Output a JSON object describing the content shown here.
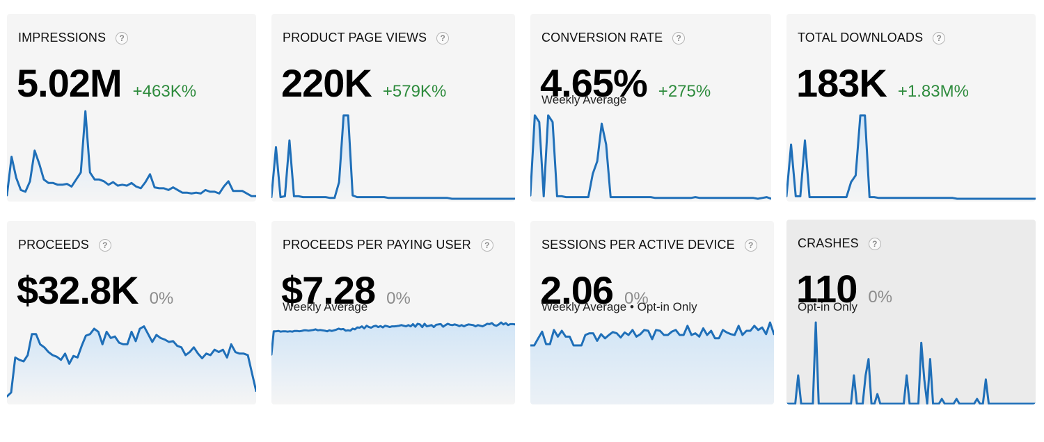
{
  "colors": {
    "line": "#1f6fb8",
    "fill": "#cfe4f7",
    "up": "#2e8b3d",
    "flat": "#8c8c8c"
  },
  "help_icon": "?",
  "cards": [
    {
      "title": "IMPRESSIONS",
      "value": "5.02M",
      "delta": "+463K%",
      "trend": "up",
      "subtitle": "",
      "chart_data": {
        "type": "area",
        "ylim": [
          0,
          100
        ],
        "values": [
          4,
          48,
          24,
          10,
          8,
          20,
          55,
          40,
          22,
          18,
          18,
          16,
          16,
          17,
          14,
          22,
          30,
          100,
          30,
          22,
          22,
          20,
          16,
          19,
          15,
          16,
          15,
          18,
          14,
          12,
          19,
          28,
          13,
          12,
          12,
          10,
          13,
          10,
          7,
          7,
          6,
          7,
          6,
          10,
          8,
          8,
          6,
          14,
          20,
          9,
          9,
          9,
          6,
          3,
          3
        ]
      }
    },
    {
      "title": "PRODUCT PAGE VIEWS",
      "value": "220K",
      "delta": "+579K%",
      "trend": "up",
      "subtitle": "",
      "chart_data": {
        "type": "area",
        "ylim": [
          0,
          100
        ],
        "values": [
          2,
          62,
          2,
          3,
          70,
          3,
          3,
          2,
          2,
          2,
          2,
          2,
          2,
          1,
          1,
          20,
          100,
          100,
          4,
          2,
          2,
          2,
          2,
          2,
          2,
          2,
          1,
          1,
          1,
          1,
          1,
          1,
          1,
          1,
          1,
          1,
          1,
          1,
          1,
          1,
          0,
          0,
          0,
          0,
          0,
          0,
          0,
          0,
          0,
          0,
          0,
          0,
          0,
          0,
          0
        ]
      }
    },
    {
      "title": "CONVERSION RATE",
      "value": "4.65%",
      "delta": "+275%",
      "trend": "up",
      "subtitle": "Weekly Average",
      "chart_data": {
        "type": "area",
        "ylim": [
          0,
          100
        ],
        "values": [
          4,
          100,
          92,
          3,
          100,
          92,
          3,
          3,
          2,
          2,
          2,
          2,
          2,
          2,
          30,
          45,
          90,
          65,
          2,
          2,
          2,
          2,
          2,
          2,
          2,
          2,
          2,
          2,
          1,
          1,
          1,
          1,
          1,
          1,
          1,
          1,
          1,
          2,
          1,
          1,
          1,
          1,
          1,
          1,
          1,
          1,
          1,
          1,
          1,
          1,
          1,
          0,
          1,
          2,
          0
        ]
      }
    },
    {
      "title": "TOTAL DOWNLOADS",
      "value": "183K",
      "delta": "+1.83M%",
      "trend": "up",
      "subtitle": "",
      "chart_data": {
        "type": "area",
        "ylim": [
          0,
          100
        ],
        "values": [
          3,
          65,
          3,
          3,
          70,
          2,
          2,
          2,
          2,
          2,
          2,
          2,
          2,
          2,
          20,
          28,
          100,
          100,
          2,
          2,
          1,
          1,
          1,
          1,
          1,
          1,
          1,
          1,
          1,
          1,
          1,
          1,
          1,
          1,
          1,
          1,
          1,
          0,
          0,
          0,
          0,
          0,
          0,
          0,
          0,
          0,
          0,
          0,
          0,
          0,
          0,
          0,
          0,
          0,
          0
        ]
      }
    },
    {
      "title": "PROCEEDS",
      "value": "$32.8K",
      "delta": "0%",
      "trend": "flat",
      "subtitle": "",
      "chart_data": {
        "type": "area",
        "ylim": [
          0,
          100
        ],
        "values": [
          5,
          10,
          55,
          52,
          50,
          58,
          85,
          85,
          72,
          68,
          62,
          58,
          56,
          52,
          60,
          47,
          57,
          55,
          70,
          83,
          85,
          92,
          88,
          72,
          88,
          80,
          82,
          74,
          72,
          72,
          88,
          76,
          92,
          95,
          85,
          75,
          84,
          80,
          78,
          75,
          76,
          70,
          68,
          58,
          62,
          68,
          60,
          54,
          60,
          58,
          65,
          62,
          65,
          55,
          72,
          62,
          60,
          60,
          58,
          35,
          12
        ]
      }
    },
    {
      "title": "PROCEEDS PER PAYING USER",
      "value": "$7.28",
      "delta": "0%",
      "trend": "flat",
      "subtitle": "Weekly Average",
      "chart_data": {
        "type": "area",
        "ylim": [
          0,
          100
        ],
        "values": [
          2,
          73,
          73,
          74,
          72,
          73,
          73,
          72,
          73,
          72,
          74,
          74,
          73,
          74,
          76,
          76,
          75,
          76,
          77,
          79,
          76,
          77,
          76,
          75,
          73,
          76,
          74,
          76,
          78,
          81,
          79,
          80,
          75,
          76,
          75,
          81,
          79,
          85,
          84,
          88,
          82,
          90,
          86,
          84,
          88,
          90,
          86,
          89,
          85,
          90,
          88,
          86,
          88,
          88,
          89,
          90,
          92,
          90,
          88,
          92,
          88,
          95,
          87,
          96,
          94,
          86,
          96,
          88,
          90,
          92,
          86,
          93,
          94,
          95,
          87,
          92,
          96,
          93,
          92,
          94,
          92,
          89,
          92,
          88,
          92,
          94,
          93,
          92,
          88,
          92,
          90,
          88,
          92,
          96,
          95,
          98,
          92,
          90,
          94,
          100,
          94,
          98,
          92,
          95,
          95,
          94
        ]
      }
    },
    {
      "title": "SESSIONS PER ACTIVE DEVICE",
      "value": "2.06",
      "delta": "0%",
      "trend": "flat",
      "subtitle": "Weekly Average • Opt-in Only",
      "chart_data": {
        "type": "area",
        "ylim": [
          0,
          100
        ],
        "values": [
          45,
          45,
          62,
          78,
          48,
          48,
          82,
          66,
          80,
          66,
          66,
          45,
          45,
          45,
          70,
          74,
          74,
          56,
          72,
          62,
          70,
          77,
          74,
          64,
          76,
          70,
          82,
          66,
          72,
          82,
          80,
          60,
          82,
          80,
          70,
          70,
          78,
          82,
          70,
          70,
          92,
          70,
          74,
          66,
          86,
          70,
          80,
          62,
          62,
          82,
          76,
          72,
          70,
          92,
          70,
          80,
          80,
          92,
          82,
          88,
          72,
          100,
          72
        ]
      }
    },
    {
      "title": "CRASHES",
      "value": "110",
      "delta": "0%",
      "trend": "flat",
      "subtitle": "Opt-in Only",
      "chart_data": {
        "type": "line",
        "ylim": [
          0,
          100
        ],
        "values": [
          0,
          0,
          0,
          0,
          35,
          0,
          0,
          0,
          0,
          0,
          100,
          0,
          0,
          0,
          0,
          0,
          0,
          0,
          0,
          0,
          0,
          0,
          0,
          35,
          0,
          0,
          0,
          35,
          55,
          0,
          0,
          12,
          0,
          0,
          0,
          0,
          0,
          0,
          0,
          0,
          0,
          35,
          0,
          0,
          0,
          0,
          75,
          30,
          0,
          55,
          0,
          0,
          0,
          6,
          0,
          0,
          0,
          0,
          6,
          0,
          0,
          0,
          0,
          0,
          0,
          6,
          0,
          0,
          30,
          0,
          0,
          0,
          0,
          0,
          0,
          0,
          0,
          0,
          0,
          0,
          0,
          0,
          0,
          0,
          0,
          0
        ]
      }
    }
  ]
}
